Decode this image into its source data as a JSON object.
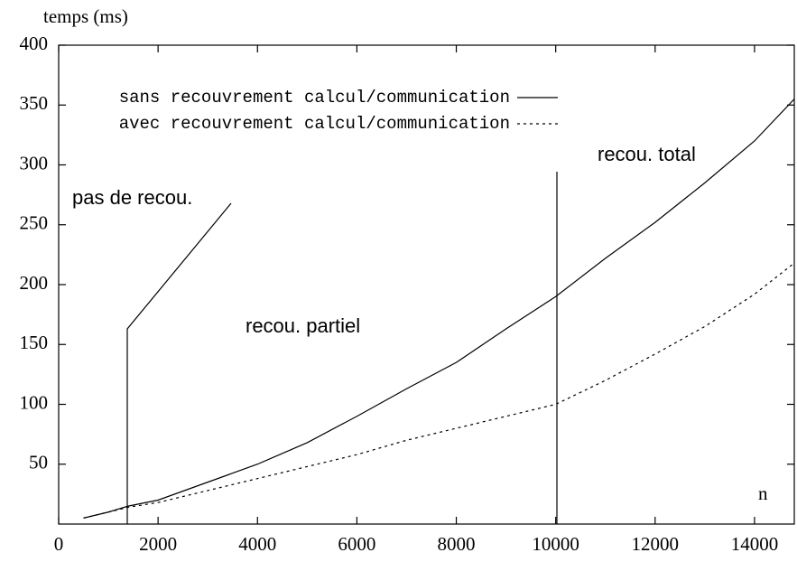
{
  "chart_data": {
    "type": "line",
    "y_label": "temps (ms)",
    "x_label": "n",
    "xlim": [
      0,
      14800
    ],
    "ylim": [
      0,
      400
    ],
    "xticks": [
      0,
      2000,
      4000,
      6000,
      8000,
      10000,
      12000,
      14000
    ],
    "yticks": [
      50,
      100,
      150,
      200,
      250,
      300,
      350,
      400
    ],
    "series": [
      {
        "name": "sans recouvrement calcul/communication",
        "color": "#000000",
        "dashed": false,
        "x": [
          500,
          1000,
          1400,
          2000,
          3000,
          4000,
          5000,
          6000,
          7000,
          8000,
          9000,
          10000,
          11000,
          12000,
          13000,
          14000,
          14800
        ],
        "values": [
          5,
          10,
          15,
          20,
          35,
          50,
          68,
          90,
          113,
          135,
          163,
          190,
          222,
          252,
          285,
          320,
          355
        ]
      },
      {
        "name": "avec recouvrement calcul/communication",
        "color": "#000000",
        "dashed": true,
        "x": [
          500,
          1400,
          2000,
          3000,
          4000,
          5000,
          6000,
          7000,
          8000,
          9000,
          10000,
          11000,
          12000,
          13000,
          14000,
          14800
        ],
        "values": [
          5,
          14,
          18,
          28,
          38,
          48,
          58,
          70,
          80,
          90,
          100,
          120,
          142,
          165,
          192,
          218
        ]
      }
    ],
    "annotations": [
      "pas de recou.",
      "recou. partiel",
      "recou. total"
    ]
  }
}
